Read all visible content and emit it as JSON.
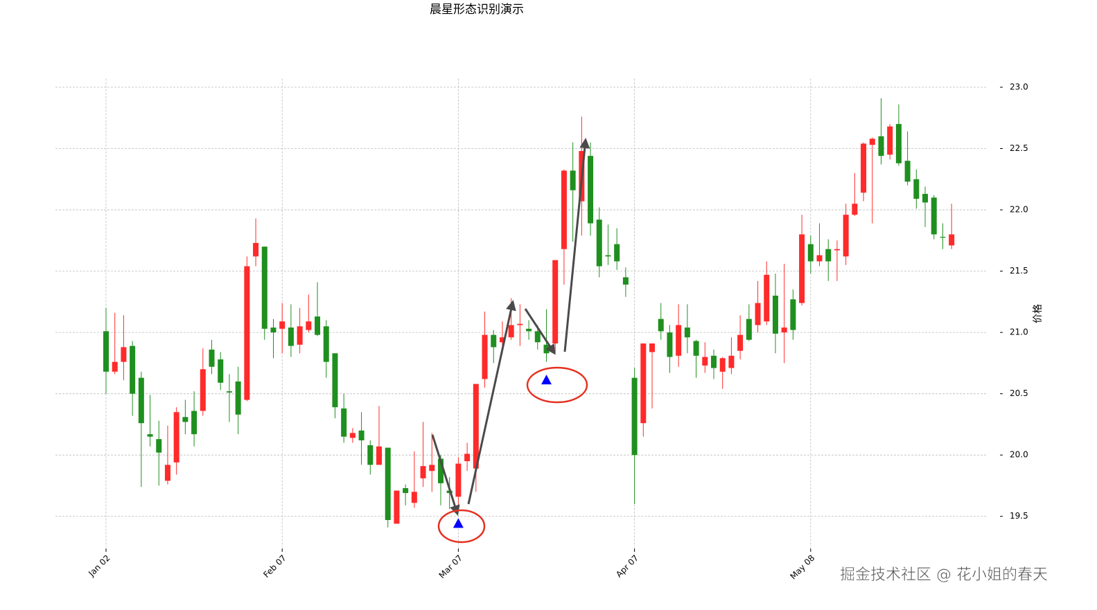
{
  "chart_data": {
    "type": "candlestick",
    "title": "晨星形态识别演示",
    "y_label": "价格",
    "watermark": "掘金技术社区 @ 花小姐的春天",
    "categories": [
      "Jan 02",
      null,
      null,
      null,
      null,
      null,
      null,
      null,
      null,
      null,
      null,
      null,
      null,
      null,
      null,
      null,
      null,
      null,
      null,
      null,
      "Feb 07",
      null,
      null,
      null,
      null,
      null,
      null,
      null,
      null,
      null,
      null,
      null,
      null,
      null,
      null,
      null,
      null,
      null,
      null,
      null,
      "Mar 07",
      null,
      null,
      null,
      null,
      null,
      null,
      null,
      null,
      null,
      null,
      null,
      null,
      null,
      null,
      null,
      null,
      null,
      null,
      null,
      "Apr 07",
      null,
      null,
      null,
      null,
      null,
      null,
      null,
      null,
      null,
      null,
      null,
      null,
      null,
      null,
      null,
      null,
      null,
      null,
      null,
      "May 08",
      null,
      null,
      null,
      null,
      null,
      null,
      null,
      null,
      null,
      null,
      null,
      null,
      null,
      null,
      null,
      null
    ],
    "open": [
      21.01,
      20.68,
      20.76,
      20.89,
      20.63,
      20.17,
      20.13,
      19.79,
      19.94,
      20.31,
      20.36,
      20.36,
      20.86,
      20.78,
      20.52,
      20.6,
      20.45,
      21.62,
      21.7,
      21.04,
      21.03,
      21.04,
      20.9,
      21.02,
      21.13,
      21.05,
      20.83,
      20.38,
      20.14,
      20.2,
      20.08,
      19.92,
      20.06,
      19.44,
      19.73,
      19.61,
      19.81,
      19.87,
      19.97,
      19.71,
      19.66,
      19.95,
      19.89,
      20.62,
      20.98,
      20.92,
      20.96,
      21.06,
      21.03,
      21.01,
      20.9,
      20.91,
      21.68,
      22.32,
      22.07,
      22.44,
      21.92,
      21.63,
      21.72,
      21.45,
      20.63,
      20.26,
      20.84,
      21.11,
      21.0,
      20.81,
      21.04,
      20.93,
      20.73,
      20.81,
      20.68,
      20.71,
      20.85,
      21.11,
      21.06,
      21.09,
      21.3,
      21.0,
      21.27,
      21.24,
      21.72,
      21.58,
      21.68,
      21.67,
      21.62,
      21.96,
      22.14,
      22.53,
      22.6,
      22.45,
      22.7,
      22.4,
      22.25,
      22.13,
      22.1,
      21.78,
      21.71
    ],
    "high": [
      21.2,
      21.16,
      21.14,
      20.93,
      20.68,
      20.49,
      20.28,
      20.24,
      20.39,
      20.45,
      20.52,
      20.87,
      20.94,
      20.84,
      20.66,
      20.72,
      21.62,
      21.93,
      21.7,
      21.11,
      21.24,
      21.23,
      21.2,
      21.31,
      21.41,
      21.1,
      20.83,
      20.5,
      20.22,
      20.35,
      20.12,
      20.4,
      20.06,
      19.71,
      19.76,
      20.03,
      20.27,
      20.18,
      20.0,
      19.82,
      19.98,
      20.1,
      20.58,
      21.17,
      21.02,
      21.09,
      21.28,
      21.23,
      21.1,
      21.06,
      21.19,
      21.59,
      22.33,
      22.55,
      22.76,
      22.55,
      22.02,
      21.88,
      21.85,
      21.53,
      20.71,
      20.91,
      20.91,
      21.24,
      21.06,
      21.23,
      21.23,
      20.94,
      20.92,
      20.86,
      20.8,
      20.96,
      21.14,
      21.23,
      21.42,
      21.58,
      21.48,
      21.56,
      21.35,
      21.96,
      21.79,
      21.89,
      21.76,
      21.75,
      22.05,
      22.3,
      22.55,
      22.59,
      22.91,
      22.7,
      22.86,
      22.64,
      22.33,
      22.19,
      22.12,
      21.89,
      22.05
    ],
    "low": [
      20.5,
      20.66,
      20.61,
      20.32,
      19.74,
      20.07,
      19.75,
      19.76,
      19.84,
      20.17,
      20.07,
      20.32,
      20.66,
      20.53,
      20.27,
      20.17,
      20.44,
      21.54,
      20.94,
      20.79,
      20.83,
      20.8,
      20.83,
      21.0,
      20.97,
      20.63,
      20.3,
      20.1,
      20.1,
      19.92,
      19.84,
      19.92,
      19.41,
      19.44,
      19.59,
      19.57,
      19.74,
      19.7,
      19.59,
      19.56,
      19.56,
      19.87,
      19.7,
      20.55,
      20.75,
      20.83,
      20.94,
      20.89,
      20.94,
      20.86,
      20.76,
      20.83,
      21.39,
      21.74,
      21.79,
      21.79,
      21.45,
      21.55,
      21.51,
      21.29,
      19.6,
      20.15,
      20.38,
      20.94,
      20.67,
      20.72,
      20.83,
      20.63,
      20.67,
      20.62,
      20.54,
      20.66,
      20.78,
      20.93,
      21.0,
      21.06,
      20.83,
      20.75,
      20.94,
      21.22,
      21.48,
      21.54,
      21.42,
      21.42,
      21.55,
      21.95,
      22.07,
      21.89,
      22.37,
      22.41,
      22.36,
      22.2,
      22.01,
      21.86,
      21.76,
      21.68,
      21.68
    ],
    "close": [
      20.68,
      20.76,
      20.88,
      20.5,
      20.26,
      20.15,
      20.02,
      19.92,
      20.35,
      20.27,
      20.17,
      20.7,
      20.72,
      20.59,
      20.51,
      20.33,
      21.54,
      21.73,
      21.03,
      21.0,
      21.09,
      20.89,
      21.05,
      21.09,
      20.98,
      20.76,
      20.39,
      20.15,
      20.18,
      20.12,
      19.92,
      20.07,
      19.47,
      19.71,
      19.69,
      19.7,
      19.91,
      19.92,
      19.77,
      19.69,
      19.93,
      20.01,
      20.58,
      20.98,
      20.88,
      20.96,
      21.06,
      21.07,
      21.01,
      20.92,
      20.83,
      21.59,
      22.32,
      22.16,
      22.48,
      21.89,
      21.54,
      21.62,
      21.58,
      21.39,
      20.0,
      20.91,
      20.91,
      21.01,
      20.8,
      21.06,
      20.96,
      20.81,
      20.8,
      20.71,
      20.79,
      20.81,
      20.98,
      20.94,
      21.24,
      21.47,
      20.99,
      21.04,
      21.02,
      21.8,
      21.58,
      21.63,
      21.58,
      21.68,
      21.96,
      22.05,
      22.54,
      22.58,
      22.44,
      22.68,
      22.38,
      22.23,
      22.09,
      22.06,
      21.8,
      21.78,
      21.8
    ],
    "up_color": "#ff2a2a",
    "down_color": "#1f8f1f",
    "markers": {
      "positions": [
        40,
        50
      ],
      "values": [
        19.44,
        20.61
      ],
      "color": "#0000ff"
    },
    "ylim": [
      19.25,
      23.07
    ],
    "yticks": [
      19.5,
      {
        "value": 20,
        "label": "20.0"
      },
      20.5,
      {
        "value": 21,
        "label": "21.0"
      },
      21.5,
      {
        "value": 22,
        "label": "22.0"
      },
      22.5,
      {
        "value": 23,
        "label": "23.0"
      }
    ],
    "grid": true
  }
}
